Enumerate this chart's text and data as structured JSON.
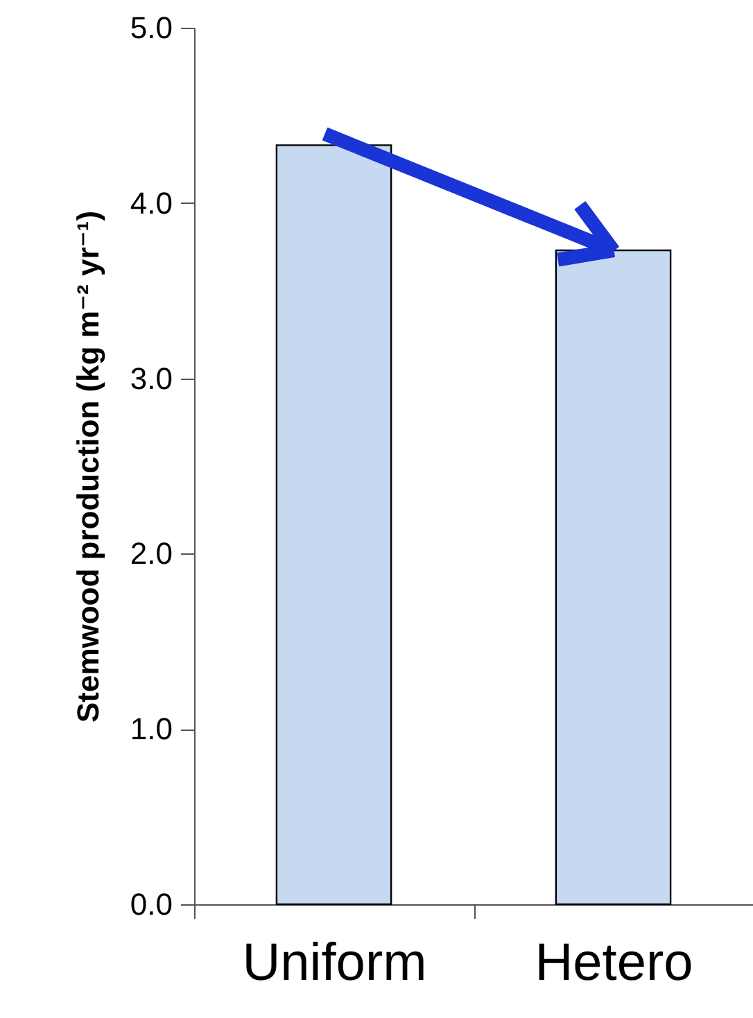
{
  "chart_data": {
    "type": "bar",
    "ylabel": "Stemwood production (kg m⁻² yr⁻¹)",
    "categories": [
      "Uniform",
      "Hetero"
    ],
    "values": [
      4.33,
      3.73
    ],
    "color": "#c6d9f1",
    "ylim": [
      0,
      5
    ],
    "yticks": [
      {
        "value": 0,
        "label": "0.0"
      },
      {
        "value": 1,
        "label": "1.0"
      },
      {
        "value": 2,
        "label": "2.0"
      },
      {
        "value": 3,
        "label": "3.0"
      },
      {
        "value": 4,
        "label": "4.0"
      },
      {
        "value": 5,
        "label": "5.0"
      }
    ],
    "grid": false
  }
}
